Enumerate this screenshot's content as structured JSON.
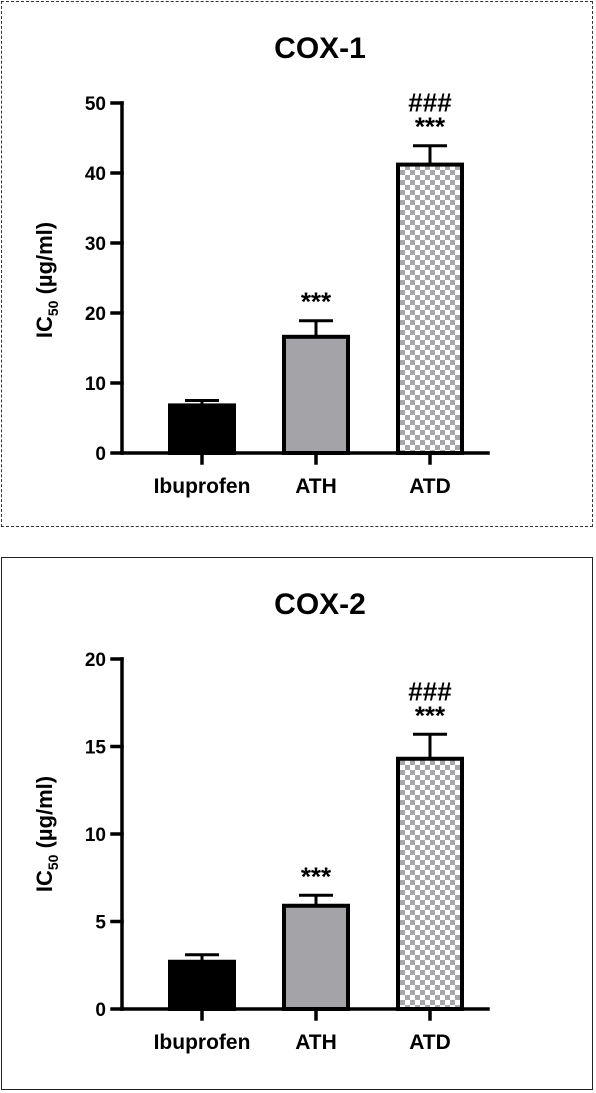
{
  "chart_data": [
    {
      "type": "bar",
      "title": "COX-1",
      "ylabel": {
        "main": "IC",
        "sub": "50",
        "rest": " (µg/ml)"
      },
      "categories": [
        "Ibuprofen",
        "ATH",
        "ATD"
      ],
      "values": [
        6.8,
        16.6,
        41.2
      ],
      "errors": [
        0.7,
        2.3,
        2.7
      ],
      "ylim": [
        0,
        50
      ],
      "yticks": [
        0,
        10,
        20,
        30,
        40,
        50
      ],
      "annotations": [
        [],
        [
          "***"
        ],
        [
          "###",
          "***"
        ]
      ],
      "bar_fills": [
        "solid-black",
        "solid-gray",
        "checkered"
      ]
    },
    {
      "type": "bar",
      "title": "COX-2",
      "ylabel": {
        "main": "IC",
        "sub": "50",
        "rest": " (µg/ml)"
      },
      "categories": [
        "Ibuprofen",
        "ATH",
        "ATD"
      ],
      "values": [
        2.7,
        5.9,
        14.3
      ],
      "errors": [
        0.4,
        0.6,
        1.4
      ],
      "ylim": [
        0,
        20
      ],
      "yticks": [
        0,
        5,
        10,
        15,
        20
      ],
      "annotations": [
        [],
        [
          "***"
        ],
        [
          "###",
          "***"
        ]
      ],
      "bar_fills": [
        "solid-black",
        "solid-gray",
        "checkered"
      ]
    }
  ],
  "colors": {
    "bar_black": "#000000",
    "bar_gray": "#a4a4a8",
    "check_light": "#ffffff",
    "check_dark": "#a7a7ab",
    "axis": "#000000"
  }
}
